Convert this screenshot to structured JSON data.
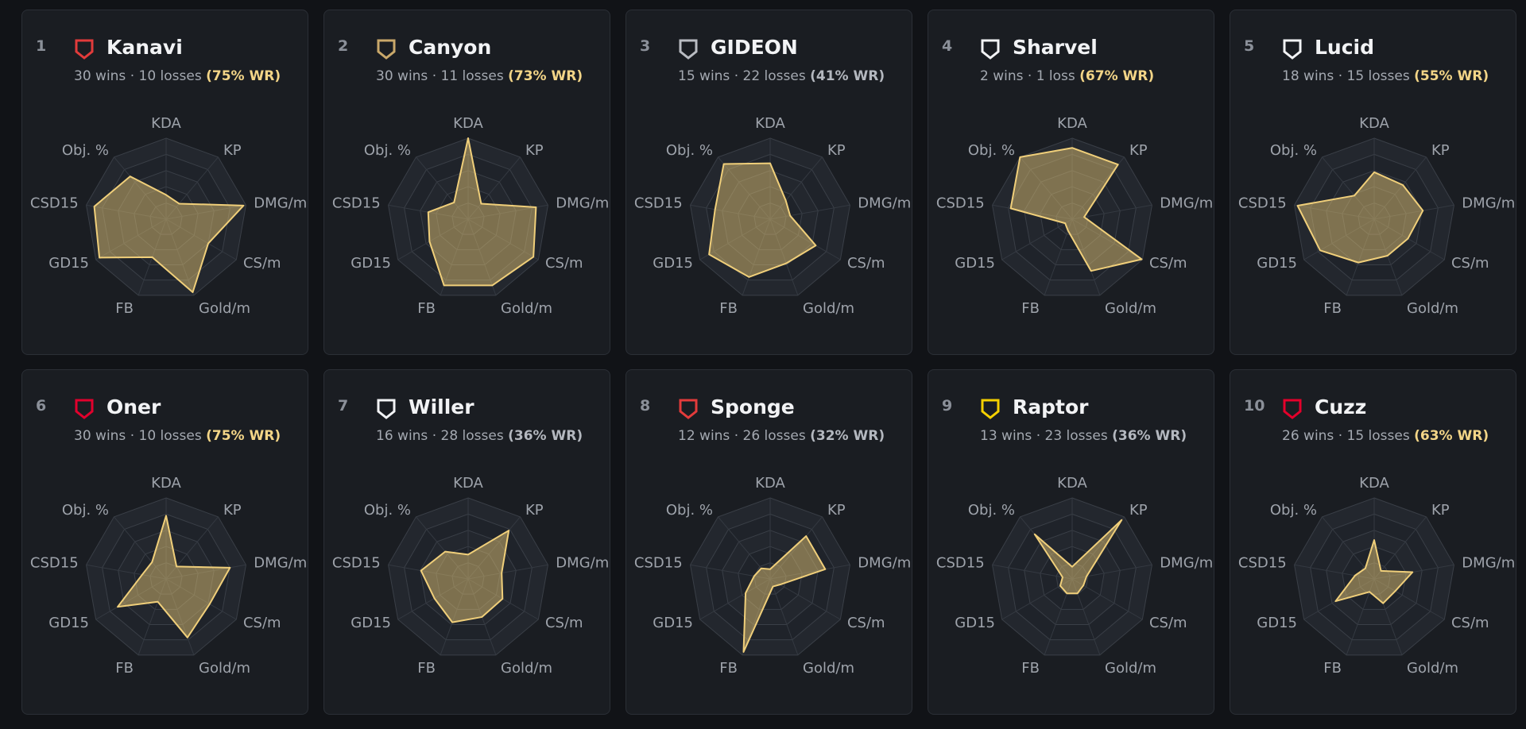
{
  "chart_data": [
    {
      "type": "radar",
      "rank": 1,
      "title": "Kanavi",
      "record": "30 wins · 10 losses",
      "wr_label": "(75% WR)",
      "highlight_color": "#f3d587",
      "categories": [
        "KDA",
        "KP",
        "DMG/m",
        "CS/m",
        "Gold/m",
        "FB",
        "GD15",
        "CSD15",
        "Obj. %"
      ],
      "values": [
        30,
        25,
        97,
        60,
        96,
        50,
        95,
        90,
        69
      ],
      "rlim": [
        0,
        100
      ],
      "rticks": [
        20,
        40,
        60,
        80,
        100
      ],
      "color": "#f0cf7a"
    },
    {
      "type": "radar",
      "rank": 2,
      "title": "Canyon",
      "record": "30 wins · 11 losses",
      "wr_label": "(73% WR)",
      "highlight_color": "#f3d587",
      "categories": [
        "KDA",
        "KP",
        "DMG/m",
        "CS/m",
        "Gold/m",
        "FB",
        "GD15",
        "CSD15",
        "Obj. %"
      ],
      "values": [
        100,
        25,
        85,
        93,
        87,
        87,
        55,
        50,
        27
      ],
      "rlim": [
        0,
        100
      ],
      "rticks": [
        20,
        40,
        60,
        80,
        100
      ],
      "color": "#f0cf7a"
    },
    {
      "type": "radar",
      "rank": 3,
      "title": "GIDEON",
      "record": "15 wins · 22 losses",
      "wr_label": "(41% WR)",
      "highlight_color": "#b4b8bf",
      "categories": [
        "KDA",
        "KP",
        "DMG/m",
        "CS/m",
        "Gold/m",
        "FB",
        "GD15",
        "CSD15",
        "Obj. %"
      ],
      "values": [
        69,
        30,
        25,
        65,
        58,
        76,
        87,
        69,
        89
      ],
      "rlim": [
        0,
        100
      ],
      "rticks": [
        20,
        40,
        60,
        80,
        100
      ],
      "color": "#f0cf7a"
    },
    {
      "type": "radar",
      "rank": 4,
      "title": "Sharvel",
      "record": "2 wins · 1 loss",
      "wr_label": "(67% WR)",
      "highlight_color": "#f3d587",
      "categories": [
        "KDA",
        "KP",
        "DMG/m",
        "CS/m",
        "Gold/m",
        "FB",
        "GD15",
        "CSD15",
        "Obj. %"
      ],
      "values": [
        88,
        88,
        15,
        99,
        68,
        15,
        10,
        77,
        100
      ],
      "rlim": [
        0,
        100
      ],
      "rticks": [
        20,
        40,
        60,
        80,
        100
      ],
      "color": "#f0cf7a"
    },
    {
      "type": "radar",
      "rank": 5,
      "title": "Lucid",
      "record": "18 wins · 15 losses",
      "wr_label": "(55% WR)",
      "highlight_color": "#f3d587",
      "categories": [
        "KDA",
        "KP",
        "DMG/m",
        "CS/m",
        "Gold/m",
        "FB",
        "GD15",
        "CSD15",
        "Obj. %"
      ],
      "values": [
        58,
        55,
        61,
        48,
        48,
        57,
        77,
        96,
        38
      ],
      "rlim": [
        0,
        100
      ],
      "rticks": [
        20,
        40,
        60,
        80,
        100
      ],
      "color": "#f0cf7a"
    },
    {
      "type": "radar",
      "rank": 6,
      "title": "Oner",
      "record": "30 wins · 10 losses",
      "wr_label": "(75% WR)",
      "highlight_color": "#f3d587",
      "categories": [
        "KDA",
        "KP",
        "DMG/m",
        "CS/m",
        "Gold/m",
        "FB",
        "GD15",
        "CSD15",
        "Obj. %"
      ],
      "values": [
        78,
        20,
        80,
        62,
        77,
        30,
        69,
        30,
        27
      ],
      "rlim": [
        0,
        100
      ],
      "rticks": [
        20,
        40,
        60,
        80,
        100
      ],
      "color": "#f0cf7a"
    },
    {
      "type": "radar",
      "rank": 7,
      "title": "Willer",
      "record": "16 wins · 28 losses",
      "wr_label": "(36% WR)",
      "highlight_color": "#b4b8bf",
      "categories": [
        "KDA",
        "KP",
        "DMG/m",
        "CS/m",
        "Gold/m",
        "FB",
        "GD15",
        "CSD15",
        "Obj. %"
      ],
      "values": [
        30,
        78,
        42,
        49,
        50,
        57,
        48,
        59,
        44
      ],
      "rlim": [
        0,
        100
      ],
      "rticks": [
        20,
        40,
        60,
        80,
        100
      ],
      "color": "#f0cf7a"
    },
    {
      "type": "radar",
      "rank": 8,
      "title": "Sponge",
      "record": "12 wins · 26 losses",
      "wr_label": "(32% WR)",
      "highlight_color": "#b4b8bf",
      "categories": [
        "KDA",
        "KP",
        "DMG/m",
        "CS/m",
        "Gold/m",
        "FB",
        "GD15",
        "CSD15",
        "Obj. %"
      ],
      "values": [
        12,
        69,
        69,
        14,
        10,
        96,
        35,
        20,
        17
      ],
      "rlim": [
        0,
        100
      ],
      "rticks": [
        20,
        40,
        60,
        80,
        100
      ],
      "color": "#f0cf7a"
    },
    {
      "type": "radar",
      "rank": 9,
      "title": "Raptor",
      "record": "13 wins · 23 losses",
      "wr_label": "(36% WR)",
      "highlight_color": "#b4b8bf",
      "categories": [
        "KDA",
        "KP",
        "DMG/m",
        "CS/m",
        "Gold/m",
        "FB",
        "GD15",
        "CSD15",
        "Obj. %"
      ],
      "values": [
        15,
        95,
        18,
        16,
        19,
        19,
        17,
        12,
        72
      ],
      "rlim": [
        0,
        100
      ],
      "rticks": [
        20,
        40,
        60,
        80,
        100
      ],
      "color": "#f0cf7a"
    },
    {
      "type": "radar",
      "rank": 10,
      "title": "Cuzz",
      "record": "26 wins · 15 losses",
      "wr_label": "(63% WR)",
      "highlight_color": "#f3d587",
      "categories": [
        "KDA",
        "KP",
        "DMG/m",
        "CS/m",
        "Gold/m",
        "FB",
        "GD15",
        "CSD15",
        "Obj. %"
      ],
      "values": [
        48,
        13,
        48,
        30,
        32,
        17,
        55,
        24,
        17
      ],
      "rlim": [
        0,
        100
      ],
      "rticks": [
        20,
        40,
        60,
        80,
        100
      ],
      "color": "#f0cf7a"
    }
  ]
}
